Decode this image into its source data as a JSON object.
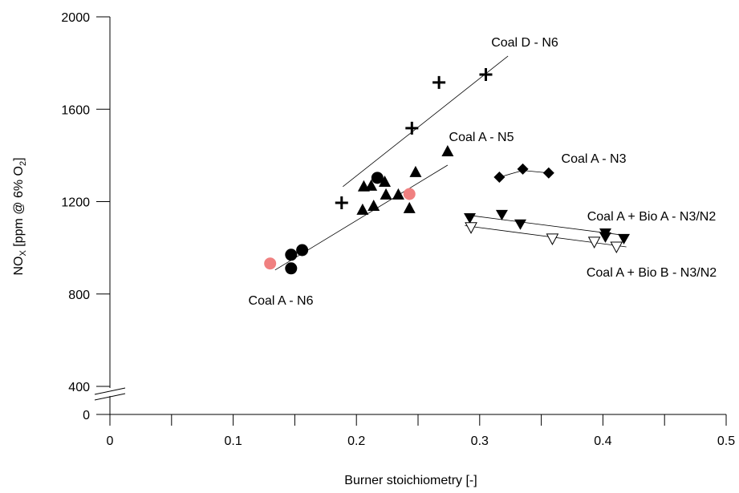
{
  "chart_data": {
    "type": "scatter",
    "x_label": "Burner stoichiometry [-]",
    "y_label_parts": [
      "NO",
      "X",
      " [ppm @ 6% O",
      "2",
      "]"
    ],
    "xlim": [
      0,
      0.5
    ],
    "xticks": [
      0,
      0.1,
      0.2,
      0.3,
      0.4,
      0.5
    ],
    "xminor": [
      0.05,
      0.15,
      0.25,
      0.35,
      0.45
    ],
    "ylim": [
      0,
      2000
    ],
    "yticks": [
      0,
      400,
      800,
      1200,
      1600,
      2000
    ],
    "y_break": [
      0,
      400
    ],
    "series": [
      {
        "name": "Coal A - N6",
        "marker": "circle",
        "color": "#000000",
        "x": [
          0.147,
          0.147,
          0.156,
          0.217
        ],
        "values": [
          970,
          911,
          990,
          1303
        ],
        "fit": {
          "x": [
            0.134,
            0.274
          ],
          "values": [
            904,
            1358
          ]
        }
      },
      {
        "marker": "circle",
        "color": "#f08080",
        "x": [
          0.13,
          0.243
        ],
        "values": [
          932,
          1233
        ]
      },
      {
        "name": "Coal A - N5",
        "marker": "triangle",
        "color": "#000000",
        "x": [
          0.205,
          0.206,
          0.212,
          0.214,
          0.223,
          0.224,
          0.234,
          0.243,
          0.248,
          0.274
        ],
        "values": [
          1164,
          1265,
          1268,
          1181,
          1285,
          1230,
          1230,
          1171,
          1327,
          1417
        ]
      },
      {
        "name": "Coal D - N6",
        "marker": "plus",
        "color": "#000000",
        "x": [
          0.188,
          0.245,
          0.267,
          0.305
        ],
        "values": [
          1195,
          1518,
          1716,
          1750
        ],
        "fit": {
          "x": [
            0.189,
            0.323
          ],
          "values": [
            1265,
            1830
          ]
        }
      },
      {
        "name": "Coal A - N3",
        "marker": "diamond",
        "color": "#000000",
        "x": [
          0.316,
          0.335,
          0.356
        ],
        "values": [
          1306,
          1341,
          1324
        ],
        "fit": {
          "x": [
            0.316,
            0.335,
            0.356
          ],
          "values": [
            1306,
            1335,
            1324
          ]
        }
      },
      {
        "name": "Coal A + Bio A - N3/N2",
        "marker": "down",
        "color": "#000000",
        "x": [
          0.292,
          0.318,
          0.333,
          0.402,
          0.402,
          0.417
        ],
        "values": [
          1129,
          1143,
          1102,
          1063,
          1046,
          1039
        ],
        "fit": {
          "x": [
            0.288,
            0.419
          ],
          "values": [
            1143,
            1053
          ]
        }
      },
      {
        "name": "Coal A + Bio B - N3/N2",
        "marker": "down-open",
        "color": "#000000",
        "x": [
          0.293,
          0.359,
          0.393,
          0.411
        ],
        "values": [
          1088,
          1039,
          1025,
          1004
        ],
        "fit": {
          "x": [
            0.288,
            0.419
          ],
          "values": [
            1096,
            1004
          ]
        }
      }
    ]
  }
}
